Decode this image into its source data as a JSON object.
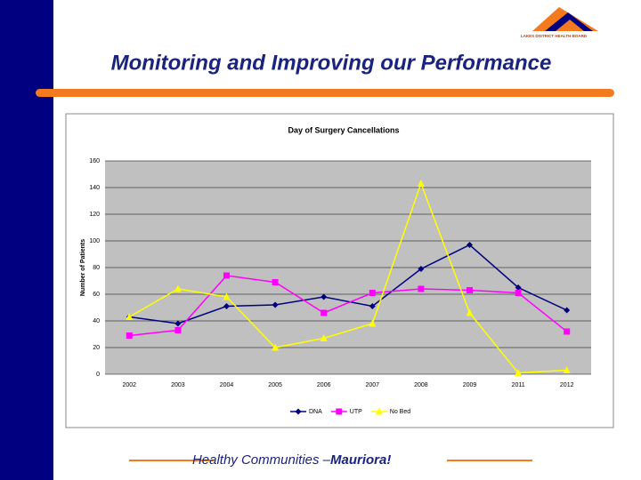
{
  "slide": {
    "title": "Monitoring and Improving our Performance",
    "logo_text": "LAKES DISTRICT HEALTH BOARD",
    "footer": "Healthy Communities – ",
    "footer_emphasis": "Mauriora!"
  },
  "chart_data": {
    "type": "line",
    "title": "Day of Surgery Cancellations",
    "y_label": "Number of Patients",
    "categories": [
      "2002",
      "2003",
      "2004",
      "2005",
      "2006",
      "2007",
      "2008",
      "2009",
      "2011",
      "2012"
    ],
    "series": [
      {
        "name": "DNA",
        "color": "#000080",
        "marker": "diamond",
        "values": [
          43,
          38,
          51,
          52,
          58,
          51,
          79,
          97,
          65,
          48
        ]
      },
      {
        "name": "UTP",
        "color": "#ff00ff",
        "marker": "square",
        "values": [
          29,
          33,
          74,
          69,
          46,
          61,
          64,
          63,
          61,
          32
        ]
      },
      {
        "name": "No Bed",
        "color": "#ffff00",
        "marker": "triangle",
        "values": [
          43,
          64,
          58,
          20,
          27,
          38,
          143,
          46,
          1,
          3
        ]
      }
    ],
    "ylim": [
      0,
      160
    ],
    "yticks": [
      0,
      20,
      40,
      60,
      80,
      100,
      120,
      140,
      160
    ],
    "grid": true,
    "legend": "bottom"
  }
}
